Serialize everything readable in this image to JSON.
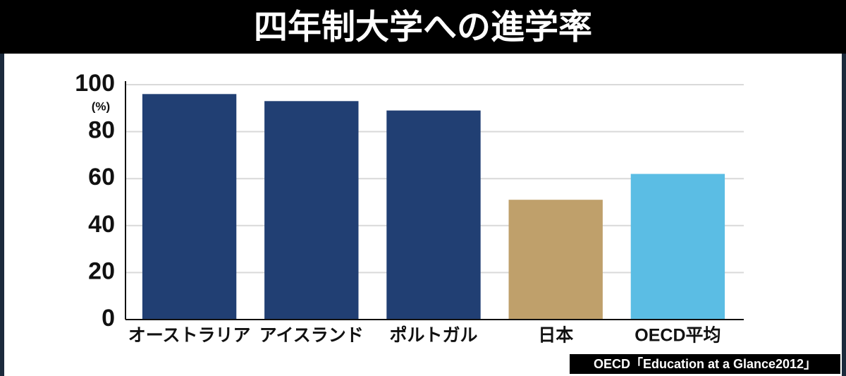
{
  "chart_data": {
    "type": "bar",
    "title": "四年制大学への進学率",
    "y_unit": "(%)",
    "categories": [
      "オーストラリア",
      "アイスランド",
      "ポルトガル",
      "日本",
      "OECD平均"
    ],
    "values": [
      96,
      93,
      89,
      51,
      62
    ],
    "colors": [
      "#213f73",
      "#213f73",
      "#213f73",
      "#bfa06b",
      "#5bbde4"
    ],
    "ylim": [
      0,
      100
    ],
    "yticks": [
      0,
      20,
      40,
      60,
      80,
      100
    ],
    "grid": true,
    "source": "OECD「Education at a Glance2012」"
  }
}
